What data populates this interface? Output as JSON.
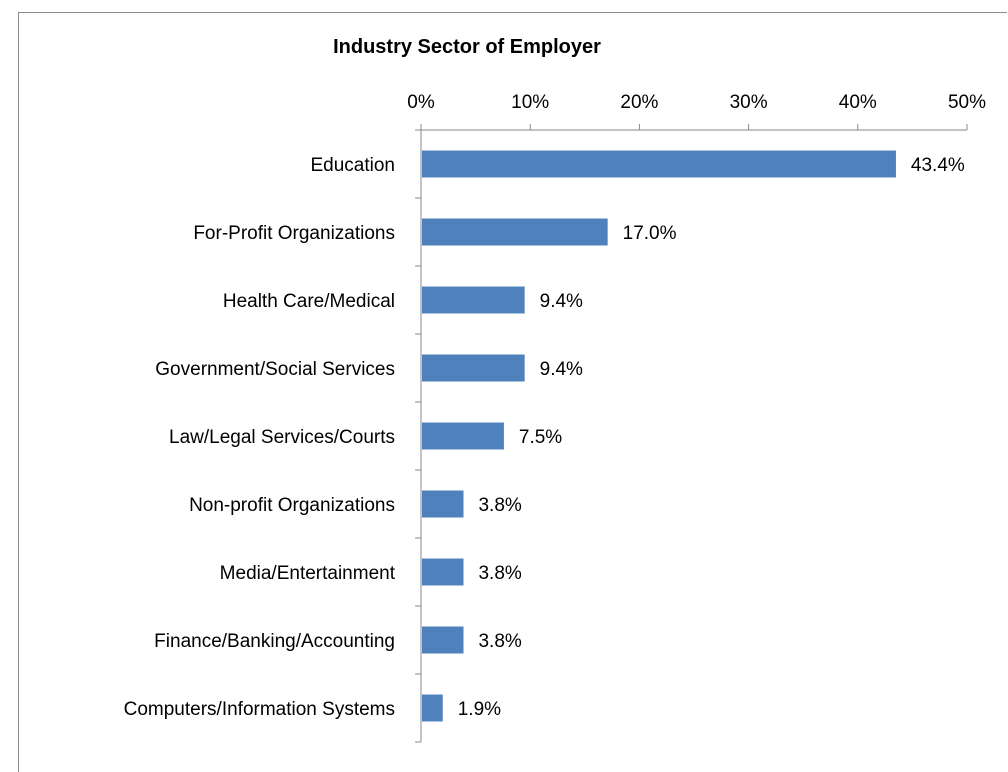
{
  "chart_data": {
    "type": "bar",
    "orientation": "horizontal",
    "title": "Industry Sector of Employer",
    "xlabel": "",
    "ylabel": "",
    "xlim": [
      0,
      50
    ],
    "x_ticks": [
      "0%",
      "10%",
      "20%",
      "30%",
      "40%",
      "50%"
    ],
    "x_axis_position": "top",
    "grid": false,
    "categories": [
      "Education",
      "For-Profit Organizations",
      "Health Care/Medical",
      "Government/Social Services",
      "Law/Legal Services/Courts",
      "Non-profit Organizations",
      "Media/Entertainment",
      "Finance/Banking/Accounting",
      "Computers/Information Systems"
    ],
    "values": [
      43.4,
      17.0,
      9.4,
      9.4,
      7.5,
      3.8,
      3.8,
      3.8,
      1.9
    ],
    "data_labels": [
      "43.4%",
      "17.0%",
      "9.4%",
      "9.4%",
      "7.5%",
      "3.8%",
      "3.8%",
      "3.8%",
      "1.9%"
    ],
    "bar_color": "#4f81bd"
  }
}
